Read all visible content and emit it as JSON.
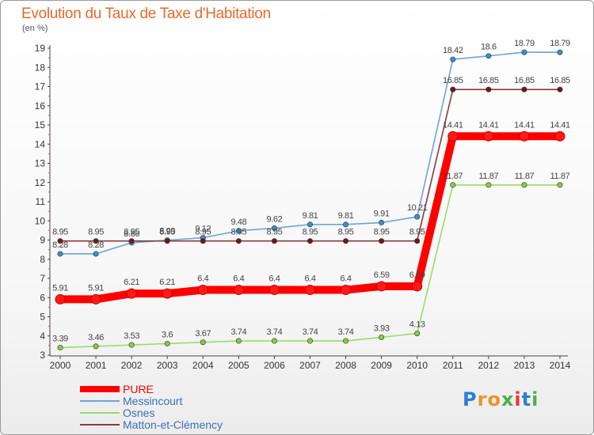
{
  "chart_data": {
    "type": "line",
    "title": "Evolution du Taux de Taxe d'Habitation",
    "unit_label": "(en %)",
    "x": [
      2000,
      2001,
      2002,
      2003,
      2004,
      2005,
      2006,
      2007,
      2008,
      2009,
      2010,
      2011,
      2012,
      2013,
      2014
    ],
    "ylim": [
      3,
      19
    ],
    "yticks": [
      3,
      4,
      5,
      6,
      7,
      8,
      9,
      10,
      11,
      12,
      13,
      14,
      15,
      16,
      17,
      18,
      19
    ],
    "grid": false,
    "legend_position": "bottom-left",
    "series": [
      {
        "name": "PURE",
        "color": "#ff0000",
        "marker": "#ff1a1a",
        "emphasis": true,
        "values": [
          5.91,
          5.91,
          6.21,
          6.21,
          6.4,
          6.4,
          6.4,
          6.4,
          6.4,
          6.59,
          6.59,
          14.41,
          14.41,
          14.41,
          14.41
        ],
        "labels": [
          "5.91",
          "5.91",
          "6.21",
          "6.21",
          "6.4",
          "6.4",
          "6.4",
          "6.4",
          "6.4",
          "6.59",
          "6.59",
          "14.41",
          "14.41",
          "14.41",
          "14.41"
        ]
      },
      {
        "name": "Messincourt",
        "color": "#6ea4d8",
        "marker": "#3b8ed4",
        "emphasis": false,
        "values": [
          8.28,
          8.28,
          8.86,
          8.99,
          9.12,
          9.48,
          9.62,
          9.81,
          9.81,
          9.91,
          10.21,
          18.42,
          18.6,
          18.79,
          18.79
        ],
        "labels": [
          "8.28",
          "8.28",
          "8.86",
          "8.99",
          "9.12",
          "9.48",
          "9.62",
          "9.81",
          "9.81",
          "9.91",
          "10.21",
          "18.42",
          "18.6",
          "18.79",
          "18.79"
        ]
      },
      {
        "name": "Osnes",
        "color": "#99dd66",
        "marker": "#88cc44",
        "emphasis": false,
        "values": [
          3.39,
          3.46,
          3.53,
          3.6,
          3.67,
          3.74,
          3.74,
          3.74,
          3.74,
          3.93,
          4.13,
          11.87,
          11.87,
          11.87,
          11.87
        ],
        "labels": [
          "3.39",
          "3.46",
          "3.53",
          "3.6",
          "3.67",
          "3.74",
          "3.74",
          "3.74",
          "3.74",
          "3.93",
          "4.13",
          "11.87",
          "11.87",
          "11.87",
          "11.87"
        ]
      },
      {
        "name": "Matton-et-Clémency",
        "color": "#8b3a3a",
        "marker": "#6b1a1a",
        "emphasis": false,
        "values": [
          8.95,
          8.95,
          8.95,
          8.95,
          8.95,
          8.95,
          8.95,
          8.95,
          8.95,
          8.95,
          8.95,
          16.85,
          16.85,
          16.85,
          16.85
        ],
        "labels": [
          "8.95",
          "8.95",
          "8.95",
          "8.95",
          "8.95",
          "8.95",
          "8.95",
          "8.95",
          "8.95",
          "8.95",
          "8.95",
          "16.85",
          "16.85",
          "16.85",
          "16.85"
        ]
      }
    ]
  },
  "legend": [
    "PURE",
    "Messincourt",
    "Osnes",
    "Matton-et-Clémency"
  ],
  "logo": {
    "text": "Proxiti",
    "colors": [
      "#2b7fd4",
      "#e8932b",
      "#e8932b",
      "#4caf50",
      "#e83b2b",
      "#2b7fd4",
      "#4caf50"
    ]
  }
}
